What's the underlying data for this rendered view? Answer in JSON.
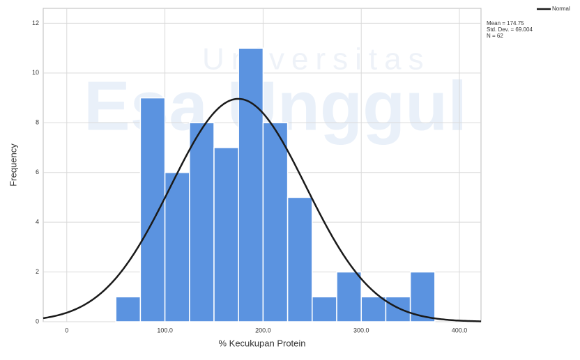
{
  "chart_data": {
    "type": "histogram",
    "watermark": [
      "Universitas",
      "Esa Unggul"
    ],
    "x_label": "% Kecukupan Protein",
    "y_label": "Frequency",
    "bins": [
      50,
      75,
      100,
      125,
      150,
      175,
      200,
      225,
      250,
      275,
      300,
      325,
      350,
      375
    ],
    "values": [
      1,
      9,
      6,
      8,
      7,
      11,
      8,
      5,
      1,
      2,
      1,
      1,
      2
    ],
    "color": "#5b93e0",
    "xlim": [
      -24,
      422
    ],
    "xticks": [
      0,
      {
        "value": 100,
        "label": "100.0"
      },
      {
        "value": 200,
        "label": "200.0"
      },
      {
        "value": 300,
        "label": "300.0"
      },
      {
        "value": 400,
        "label": "400.0"
      }
    ],
    "ylim": [
      0,
      12.6
    ],
    "yticks": [
      0,
      2,
      4,
      6,
      8,
      10,
      12
    ],
    "grid": true,
    "curve": {
      "name": "Normal",
      "color": "#1a1a1a",
      "mean": 174.75,
      "std_dev": 69.004,
      "n": 62,
      "labels": [
        "Mean = 174.75",
        "Std. Dev. = 69.004",
        "N = 62"
      ]
    }
  }
}
